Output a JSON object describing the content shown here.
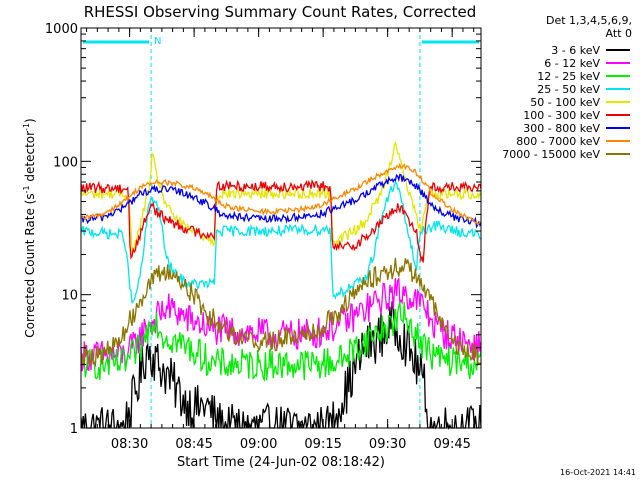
{
  "chart_data": {
    "type": "line",
    "title": "RHESSI Observing Summary Count Rates, Corrected",
    "xlabel": "Start Time (24-Jun-02 08:18:42)",
    "ylabel_main": "Corrected Count Rate (s",
    "ylabel_sup1": "-1",
    "ylabel_mid": " detector",
    "ylabel_sup2": "-1",
    "ylabel_end": ")",
    "yscale": "log",
    "ylim": [
      1,
      1000
    ],
    "xlim_minutes": [
      0,
      93
    ],
    "x_tick_labels": [
      {
        "minute": 11.3,
        "label": "08:30"
      },
      {
        "minute": 26.3,
        "label": "08:45"
      },
      {
        "minute": 41.3,
        "label": "09:00"
      },
      {
        "minute": 56.3,
        "label": "09:15"
      },
      {
        "minute": 71.3,
        "label": "09:30"
      },
      {
        "minute": 86.3,
        "label": "09:45"
      }
    ],
    "y_tick_labels": [
      {
        "value": 1,
        "label": "1"
      },
      {
        "value": 10,
        "label": "10"
      },
      {
        "value": 100,
        "label": "100"
      },
      {
        "value": 1000,
        "label": "1000"
      }
    ],
    "legend_header": [
      "Det 1,3,4,5,6,9,",
      "Att 0"
    ],
    "night_intervals": [
      [
        0,
        16.3
      ],
      [
        78.8,
        93
      ]
    ],
    "night_marker_label": "N",
    "timestamp": "16-Oct-2021 14:41",
    "series": [
      {
        "name": "3 - 6 keV",
        "color": "#000000",
        "t": [
          0,
          10,
          13,
          15.5,
          18,
          20,
          24,
          27,
          29,
          31,
          33,
          45,
          50,
          58,
          60,
          62,
          64,
          66,
          70,
          72,
          74,
          76,
          78,
          80,
          81,
          83,
          85,
          93
        ],
        "v": [
          1,
          1,
          2,
          4,
          3,
          2.5,
          1.6,
          1.4,
          1.5,
          1.2,
          1,
          1,
          1,
          1,
          1.5,
          2,
          3,
          4,
          5,
          6,
          5.5,
          4,
          3,
          2,
          1,
          1,
          1,
          1
        ]
      },
      {
        "name": "6 - 12 keV",
        "color": "#ff00ff",
        "t": [
          0,
          10,
          12,
          14,
          16,
          18,
          20,
          22,
          25,
          28,
          30,
          45,
          50,
          55,
          60,
          64,
          68,
          72,
          74,
          76,
          78,
          80,
          82,
          85,
          93
        ],
        "v": [
          3.5,
          3.5,
          4,
          5,
          6,
          7,
          8,
          7.5,
          6.5,
          6,
          5.5,
          5,
          5,
          5.2,
          6,
          7,
          8.5,
          10,
          10.5,
          10,
          9,
          8,
          6,
          5,
          4
        ]
      },
      {
        "name": "12 - 25 keV",
        "color": "#00ee00",
        "t": [
          0,
          10,
          12,
          14,
          16,
          17,
          19,
          22,
          25,
          28,
          31,
          45,
          55,
          60,
          64,
          68,
          72,
          74,
          76,
          78,
          80,
          82,
          85,
          93
        ],
        "v": [
          3,
          3,
          3.5,
          4,
          6,
          7,
          5,
          4.5,
          4,
          3.5,
          3,
          3,
          3,
          3.2,
          4,
          5,
          6,
          7,
          6.5,
          5,
          4,
          3.5,
          3.2,
          3
        ]
      },
      {
        "name": "25 - 50 keV",
        "color": "#00e5ee",
        "t": [
          0,
          10,
          12,
          14,
          15.5,
          16.3,
          18,
          20,
          22,
          25,
          28,
          31,
          31.5,
          45,
          58,
          58.5,
          62,
          66,
          68,
          70,
          72,
          73,
          74,
          76,
          78,
          78.8,
          81,
          83,
          85,
          90,
          93
        ],
        "v": [
          30,
          28,
          8,
          15,
          40,
          55,
          45,
          18,
          14,
          12,
          12,
          12,
          30,
          30,
          31,
          10,
          11,
          13,
          20,
          40,
          60,
          68,
          60,
          30,
          15,
          30,
          32,
          33,
          31,
          29,
          28
        ]
      },
      {
        "name": "50 - 100 keV",
        "color": "#e5e500",
        "t": [
          0,
          10,
          11,
          12,
          14,
          16,
          16.6,
          17.5,
          20,
          24,
          28,
          31,
          31.5,
          45,
          58,
          58.5,
          62,
          66,
          70,
          72,
          73,
          74,
          75,
          76,
          78,
          79,
          81,
          85,
          93
        ],
        "v": [
          57,
          57,
          57,
          20,
          35,
          70,
          110,
          80,
          45,
          32,
          28,
          25,
          57,
          57,
          58,
          25,
          28,
          35,
          60,
          100,
          140,
          110,
          80,
          60,
          40,
          30,
          57,
          57,
          57
        ]
      },
      {
        "name": "100 - 300 keV",
        "color": "#ee0000",
        "t": [
          0,
          10,
          11,
          11.5,
          14,
          16.3,
          18,
          22,
          26,
          30,
          31,
          31.5,
          45,
          58,
          58.5,
          64,
          68,
          72,
          74,
          76,
          78,
          78.8,
          79.5,
          81,
          85,
          93
        ],
        "v": [
          63,
          63,
          63,
          18,
          30,
          48,
          40,
          34,
          30,
          28,
          28,
          65,
          65,
          65,
          22,
          24,
          30,
          42,
          45,
          38,
          30,
          20,
          18,
          64,
          64,
          62
        ]
      },
      {
        "name": "300 - 800 keV",
        "color": "#0000ee",
        "t": [
          0,
          5,
          10,
          14,
          18,
          22,
          26,
          30,
          33,
          37,
          41,
          45,
          50,
          55,
          60,
          64,
          68,
          72,
          74,
          76,
          78,
          80,
          82,
          85,
          88,
          91,
          93
        ],
        "v": [
          36,
          38,
          45,
          58,
          62,
          60,
          55,
          46,
          40,
          38,
          37,
          37,
          38,
          40,
          45,
          52,
          62,
          73,
          75,
          72,
          65,
          55,
          45,
          40,
          37,
          35,
          34
        ]
      },
      {
        "name": "800 - 7000 keV",
        "color": "#ff8800",
        "t": [
          0,
          5,
          10,
          14,
          18,
          22,
          26,
          30,
          33,
          37,
          41,
          45,
          50,
          55,
          60,
          64,
          68,
          72,
          74,
          76,
          78,
          80,
          82,
          85,
          88,
          91,
          93
        ],
        "v": [
          37,
          40,
          50,
          65,
          70,
          68,
          63,
          55,
          47,
          44,
          42,
          42,
          43,
          46,
          54,
          63,
          75,
          88,
          93,
          90,
          82,
          68,
          55,
          47,
          40,
          36,
          34
        ]
      },
      {
        "name": "7000 - 15000 keV",
        "color": "#8b7500",
        "t": [
          0,
          5,
          9,
          12,
          15,
          18,
          20,
          23,
          26,
          29,
          32,
          36,
          40,
          45,
          50,
          55,
          60,
          64,
          68,
          72,
          75,
          78,
          80,
          83,
          85,
          88,
          93
        ],
        "v": [
          3.5,
          3.5,
          4.5,
          7,
          11,
          14,
          15,
          13,
          10,
          7.5,
          6,
          5,
          4.5,
          4.5,
          5,
          5.5,
          7.5,
          10.5,
          13.5,
          15.5,
          16.5,
          14,
          11,
          7,
          5,
          4,
          3.5
        ]
      }
    ]
  }
}
